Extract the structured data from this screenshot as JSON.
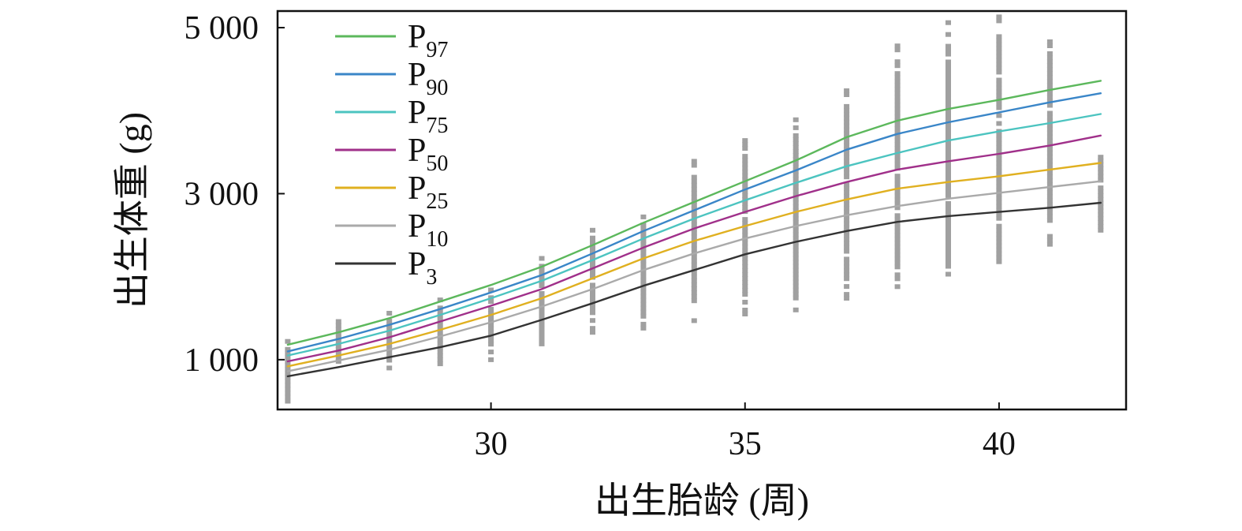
{
  "chart_data": {
    "type": "line",
    "title": "",
    "xlabel": "出生胎龄 (周)",
    "ylabel": "出生体重 (g)",
    "xlim": [
      25.8,
      42.5
    ],
    "ylim": [
      400,
      5200
    ],
    "xticks": [
      30,
      35,
      40
    ],
    "yticks": [
      1000,
      3000,
      5000
    ],
    "xtick_labels": [
      "30",
      "35",
      "40"
    ],
    "ytick_labels": [
      "1 000",
      "3 000",
      "5 000"
    ],
    "grid": false,
    "legend_position": "top-left",
    "x": [
      26,
      27,
      28,
      29,
      30,
      31,
      32,
      33,
      34,
      35,
      36,
      37,
      38,
      39,
      40,
      41,
      42
    ],
    "series": [
      {
        "name": "P",
        "sub": "97",
        "color": "#5cb85c",
        "values": [
          1180,
          1330,
          1500,
          1700,
          1900,
          2120,
          2380,
          2650,
          2900,
          3150,
          3400,
          3680,
          3880,
          4020,
          4130,
          4250,
          4360
        ]
      },
      {
        "name": "P",
        "sub": "90",
        "color": "#3a86c8",
        "values": [
          1100,
          1250,
          1420,
          1610,
          1810,
          2020,
          2280,
          2550,
          2800,
          3050,
          3280,
          3530,
          3720,
          3860,
          3980,
          4100,
          4210
        ]
      },
      {
        "name": "P",
        "sub": "75",
        "color": "#4cc4c0",
        "values": [
          1050,
          1190,
          1350,
          1540,
          1740,
          1950,
          2200,
          2460,
          2700,
          2920,
          3130,
          3330,
          3490,
          3640,
          3750,
          3850,
          3960
        ]
      },
      {
        "name": "P",
        "sub": "50",
        "color": "#a0308a",
        "values": [
          980,
          1110,
          1270,
          1460,
          1650,
          1850,
          2100,
          2350,
          2580,
          2780,
          2970,
          3140,
          3290,
          3390,
          3480,
          3580,
          3700
        ]
      },
      {
        "name": "P",
        "sub": "25",
        "color": "#e0b020",
        "values": [
          920,
          1050,
          1190,
          1360,
          1540,
          1740,
          1980,
          2220,
          2430,
          2610,
          2780,
          2930,
          3060,
          3140,
          3210,
          3290,
          3370
        ]
      },
      {
        "name": "P",
        "sub": "10",
        "color": "#aaaaaa",
        "values": [
          860,
          990,
          1120,
          1280,
          1450,
          1640,
          1850,
          2080,
          2280,
          2460,
          2610,
          2740,
          2850,
          2940,
          3010,
          3080,
          3150
        ]
      },
      {
        "name": "P",
        "sub": "3",
        "color": "#333333",
        "values": [
          800,
          910,
          1030,
          1150,
          1290,
          1480,
          1680,
          1890,
          2080,
          2270,
          2420,
          2550,
          2660,
          2730,
          2780,
          2830,
          2890
        ]
      }
    ],
    "scatter": {
      "color": "#a0a0a0",
      "columns": [
        {
          "x": 26,
          "min": 500,
          "max": 1220
        },
        {
          "x": 27,
          "min": 980,
          "max": 1460
        },
        {
          "x": 28,
          "min": 900,
          "max": 1560
        },
        {
          "x": 29,
          "min": 950,
          "max": 1720
        },
        {
          "x": 30,
          "min": 1000,
          "max": 1840
        },
        {
          "x": 31,
          "min": 1190,
          "max": 2220
        },
        {
          "x": 32,
          "min": 1330,
          "max": 2560
        },
        {
          "x": 33,
          "min": 1380,
          "max": 2720
        },
        {
          "x": 34,
          "min": 1470,
          "max": 3390
        },
        {
          "x": 35,
          "min": 1550,
          "max": 3640
        },
        {
          "x": 36,
          "min": 1600,
          "max": 3890
        },
        {
          "x": 37,
          "min": 1740,
          "max": 4240
        },
        {
          "x": 38,
          "min": 1880,
          "max": 4780
        },
        {
          "x": 39,
          "min": 2030,
          "max": 5060
        },
        {
          "x": 40,
          "min": 2180,
          "max": 5130
        },
        {
          "x": 41,
          "min": 2390,
          "max": 4830
        },
        {
          "x": 42,
          "min": 2560,
          "max": 3440
        }
      ]
    }
  }
}
